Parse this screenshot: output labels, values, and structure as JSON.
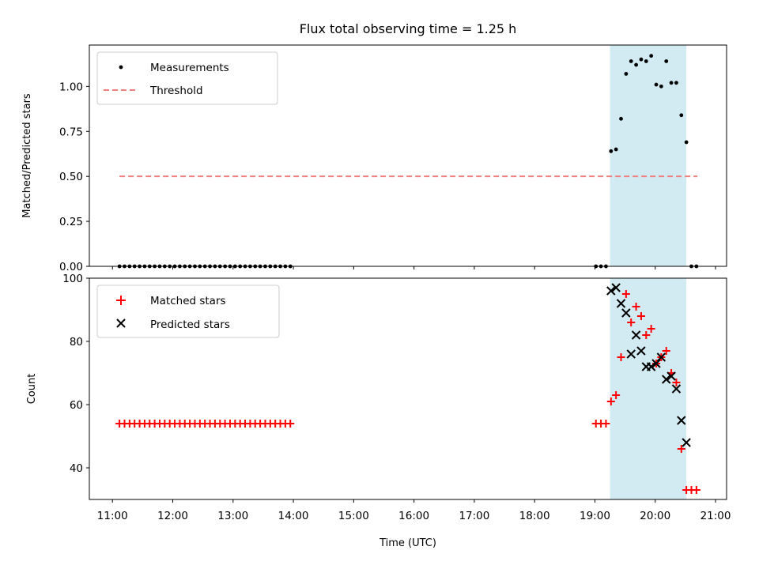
{
  "figure": {
    "title": "Flux total observing time = 1.25 h",
    "xlabel": "Time (UTC)",
    "xticks": [
      "11:00",
      "12:00",
      "13:00",
      "14:00",
      "15:00",
      "16:00",
      "17:00",
      "18:00",
      "19:00",
      "20:00",
      "21:00"
    ]
  },
  "colors": {
    "measurements": "#000000",
    "threshold": "#f08080",
    "matched": "#ff0000",
    "predicted": "#000000",
    "shade": "#add8e6"
  },
  "chart_data": [
    {
      "type": "scatter",
      "title": "Flux total observing time = 1.25 h",
      "xlabel": "Time (UTC)",
      "ylabel": "Matched/Predicted stars",
      "xlim": [
        "10:37",
        "21:11"
      ],
      "ylim": [
        0,
        1.23
      ],
      "yticks": [
        "0.00",
        "0.25",
        "0.50",
        "0.75",
        "1.00"
      ],
      "legend": {
        "location": "top-left",
        "entries": [
          "Measurements",
          "Threshold"
        ]
      },
      "shaded_interval": {
        "from": "19:15",
        "to": "20:31"
      },
      "threshold": {
        "value": 0.5,
        "from": "11:07",
        "to": "20:42"
      },
      "series": [
        {
          "name": "Measurements",
          "marker": "dot",
          "points": [
            [
              "11:07",
              0
            ],
            [
              "11:12",
              0
            ],
            [
              "11:17",
              0
            ],
            [
              "11:22",
              0
            ],
            [
              "11:27",
              0
            ],
            [
              "11:32",
              0
            ],
            [
              "11:37",
              0
            ],
            [
              "11:42",
              0
            ],
            [
              "11:47",
              0
            ],
            [
              "11:52",
              0
            ],
            [
              "11:57",
              0
            ],
            [
              "12:02",
              0
            ],
            [
              "12:07",
              0
            ],
            [
              "12:12",
              0
            ],
            [
              "12:17",
              0
            ],
            [
              "12:22",
              0
            ],
            [
              "12:27",
              0
            ],
            [
              "12:32",
              0
            ],
            [
              "12:37",
              0
            ],
            [
              "12:42",
              0
            ],
            [
              "12:47",
              0
            ],
            [
              "12:52",
              0
            ],
            [
              "12:57",
              0
            ],
            [
              "13:02",
              0
            ],
            [
              "13:07",
              0
            ],
            [
              "13:12",
              0
            ],
            [
              "13:17",
              0
            ],
            [
              "13:22",
              0
            ],
            [
              "13:27",
              0
            ],
            [
              "13:32",
              0
            ],
            [
              "13:37",
              0
            ],
            [
              "13:42",
              0
            ],
            [
              "13:47",
              0
            ],
            [
              "13:52",
              0
            ],
            [
              "13:57",
              0
            ],
            [
              "19:01",
              0
            ],
            [
              "19:06",
              0
            ],
            [
              "19:11",
              0
            ],
            [
              "19:16",
              0.64
            ],
            [
              "19:21",
              0.65
            ],
            [
              "19:26",
              0.82
            ],
            [
              "19:31",
              1.07
            ],
            [
              "19:36",
              1.14
            ],
            [
              "19:41",
              1.12
            ],
            [
              "19:46",
              1.15
            ],
            [
              "19:51",
              1.14
            ],
            [
              "19:56",
              1.17
            ],
            [
              "20:01",
              1.01
            ],
            [
              "20:06",
              1.0
            ],
            [
              "20:11",
              1.14
            ],
            [
              "20:16",
              1.02
            ],
            [
              "20:21",
              1.02
            ],
            [
              "20:26",
              0.84
            ],
            [
              "20:31",
              0.69
            ],
            [
              "20:36",
              0
            ],
            [
              "20:41",
              0
            ]
          ]
        }
      ]
    },
    {
      "type": "scatter",
      "xlabel": "Time (UTC)",
      "ylabel": "Count",
      "xlim": [
        "10:37",
        "21:11"
      ],
      "ylim": [
        30,
        100
      ],
      "yticks": [
        "40",
        "60",
        "80",
        "100"
      ],
      "legend": {
        "location": "top-left",
        "entries": [
          "Matched stars",
          "Predicted stars"
        ]
      },
      "shaded_interval": {
        "from": "19:15",
        "to": "20:31"
      },
      "series": [
        {
          "name": "Matched stars",
          "marker": "plus",
          "points": [
            [
              "11:07",
              54
            ],
            [
              "11:12",
              54
            ],
            [
              "11:17",
              54
            ],
            [
              "11:22",
              54
            ],
            [
              "11:27",
              54
            ],
            [
              "11:32",
              54
            ],
            [
              "11:37",
              54
            ],
            [
              "11:42",
              54
            ],
            [
              "11:47",
              54
            ],
            [
              "11:52",
              54
            ],
            [
              "11:57",
              54
            ],
            [
              "12:02",
              54
            ],
            [
              "12:07",
              54
            ],
            [
              "12:12",
              54
            ],
            [
              "12:17",
              54
            ],
            [
              "12:22",
              54
            ],
            [
              "12:27",
              54
            ],
            [
              "12:32",
              54
            ],
            [
              "12:37",
              54
            ],
            [
              "12:42",
              54
            ],
            [
              "12:47",
              54
            ],
            [
              "12:52",
              54
            ],
            [
              "12:57",
              54
            ],
            [
              "13:02",
              54
            ],
            [
              "13:07",
              54
            ],
            [
              "13:12",
              54
            ],
            [
              "13:17",
              54
            ],
            [
              "13:22",
              54
            ],
            [
              "13:27",
              54
            ],
            [
              "13:32",
              54
            ],
            [
              "13:37",
              54
            ],
            [
              "13:42",
              54
            ],
            [
              "13:47",
              54
            ],
            [
              "13:52",
              54
            ],
            [
              "13:57",
              54
            ],
            [
              "19:01",
              54
            ],
            [
              "19:06",
              54
            ],
            [
              "19:11",
              54
            ],
            [
              "19:16",
              61
            ],
            [
              "19:21",
              63
            ],
            [
              "19:26",
              75
            ],
            [
              "19:31",
              95
            ],
            [
              "19:36",
              86
            ],
            [
              "19:41",
              91
            ],
            [
              "19:46",
              88
            ],
            [
              "19:51",
              82
            ],
            [
              "19:56",
              84
            ],
            [
              "20:01",
              73
            ],
            [
              "20:06",
              75
            ],
            [
              "20:11",
              77
            ],
            [
              "20:16",
              70
            ],
            [
              "20:21",
              67
            ],
            [
              "20:26",
              46
            ],
            [
              "20:31",
              33
            ],
            [
              "20:36",
              33
            ],
            [
              "20:41",
              33
            ]
          ]
        },
        {
          "name": "Predicted stars",
          "marker": "x",
          "points": [
            [
              "19:16",
              96
            ],
            [
              "19:21",
              97
            ],
            [
              "19:26",
              92
            ],
            [
              "19:31",
              89
            ],
            [
              "19:36",
              76
            ],
            [
              "19:41",
              82
            ],
            [
              "19:46",
              77
            ],
            [
              "19:51",
              72
            ],
            [
              "19:56",
              72
            ],
            [
              "20:01",
              73
            ],
            [
              "20:06",
              75
            ],
            [
              "20:11",
              68
            ],
            [
              "20:16",
              69
            ],
            [
              "20:21",
              65
            ],
            [
              "20:26",
              55
            ],
            [
              "20:31",
              48
            ]
          ]
        }
      ]
    }
  ]
}
